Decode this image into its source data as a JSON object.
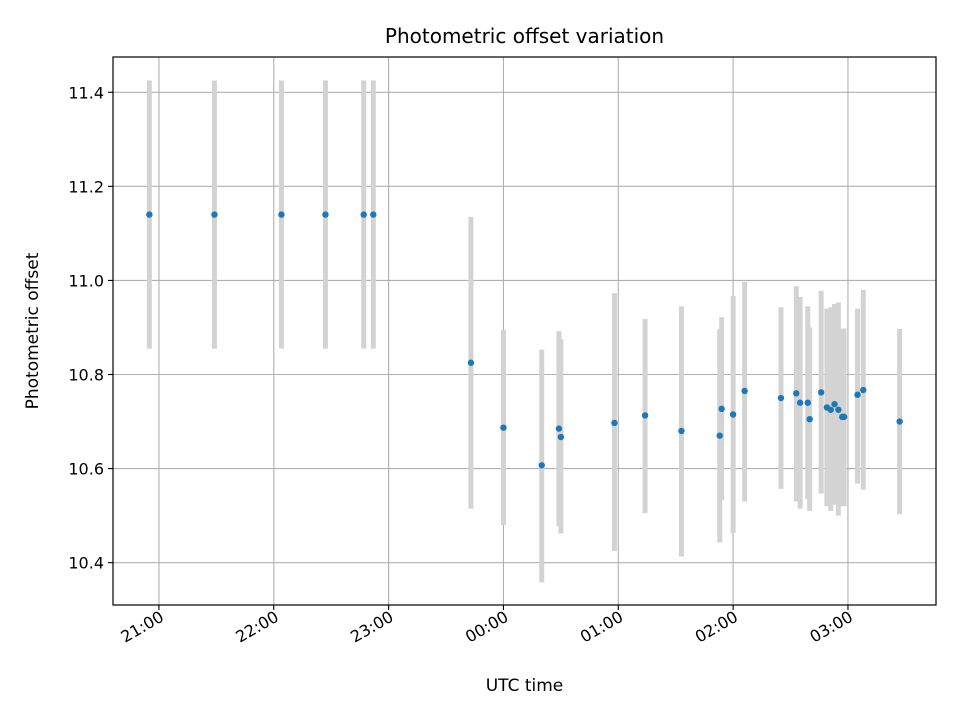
{
  "chart_data": {
    "type": "scatter",
    "title": "Photometric offset variation",
    "xlabel": "UTC time",
    "ylabel": "Photometric offset",
    "x_axis_kind": "time",
    "xlim": [
      "20:36",
      "03:46"
    ],
    "ylim": [
      10.31,
      11.475
    ],
    "grid": true,
    "x_ticks": [
      "21:00",
      "22:00",
      "23:00",
      "00:00",
      "01:00",
      "02:00",
      "03:00"
    ],
    "y_ticks": [
      "10.4",
      "10.6",
      "10.8",
      "11.0",
      "11.2",
      "11.4"
    ],
    "series": [
      {
        "marker_color": "#1f77b4",
        "errorbar_color": "#d3d3d3",
        "points": [
          {
            "time": "20:55",
            "y": 11.14,
            "low": 10.855,
            "high": 11.425
          },
          {
            "time": "21:29",
            "y": 11.14,
            "low": 10.855,
            "high": 11.425
          },
          {
            "time": "22:04",
            "y": 11.14,
            "low": 10.855,
            "high": 11.425
          },
          {
            "time": "22:27",
            "y": 11.14,
            "low": 10.855,
            "high": 11.425
          },
          {
            "time": "22:47",
            "y": 11.14,
            "low": 10.855,
            "high": 11.425
          },
          {
            "time": "22:52",
            "y": 11.14,
            "low": 10.855,
            "high": 11.425
          },
          {
            "time": "23:43",
            "y": 10.825,
            "low": 10.515,
            "high": 11.135
          },
          {
            "time": "00:00",
            "y": 10.687,
            "low": 10.48,
            "high": 10.895
          },
          {
            "time": "00:20",
            "y": 10.607,
            "low": 10.358,
            "high": 10.853
          },
          {
            "time": "00:29",
            "y": 10.685,
            "low": 10.478,
            "high": 10.892
          },
          {
            "time": "00:30",
            "y": 10.667,
            "low": 10.462,
            "high": 10.875
          },
          {
            "time": "00:58",
            "y": 10.697,
            "low": 10.425,
            "high": 10.973
          },
          {
            "time": "01:14",
            "y": 10.713,
            "low": 10.505,
            "high": 10.918
          },
          {
            "time": "01:33",
            "y": 10.68,
            "low": 10.413,
            "high": 10.945
          },
          {
            "time": "01:53",
            "y": 10.67,
            "low": 10.443,
            "high": 10.897
          },
          {
            "time": "01:54",
            "y": 10.727,
            "low": 10.533,
            "high": 10.922
          },
          {
            "time": "02:00",
            "y": 10.715,
            "low": 10.463,
            "high": 10.967
          },
          {
            "time": "02:06",
            "y": 10.765,
            "low": 10.53,
            "high": 10.997
          },
          {
            "time": "02:25",
            "y": 10.75,
            "low": 10.557,
            "high": 10.943
          },
          {
            "time": "02:33",
            "y": 10.76,
            "low": 10.53,
            "high": 10.988
          },
          {
            "time": "02:35",
            "y": 10.74,
            "low": 10.515,
            "high": 10.965
          },
          {
            "time": "02:39",
            "y": 10.74,
            "low": 10.535,
            "high": 10.945
          },
          {
            "time": "02:40",
            "y": 10.705,
            "low": 10.51,
            "high": 10.9
          },
          {
            "time": "02:46",
            "y": 10.762,
            "low": 10.547,
            "high": 10.978
          },
          {
            "time": "02:49",
            "y": 10.73,
            "low": 10.52,
            "high": 10.94
          },
          {
            "time": "02:51",
            "y": 10.725,
            "low": 10.51,
            "high": 10.943
          },
          {
            "time": "02:53",
            "y": 10.737,
            "low": 10.523,
            "high": 10.95
          },
          {
            "time": "02:55",
            "y": 10.725,
            "low": 10.5,
            "high": 10.953
          },
          {
            "time": "02:57",
            "y": 10.71,
            "low": 10.52,
            "high": 10.897
          },
          {
            "time": "02:58",
            "y": 10.71,
            "low": 10.52,
            "high": 10.898
          },
          {
            "time": "03:05",
            "y": 10.757,
            "low": 10.568,
            "high": 10.94
          },
          {
            "time": "03:08",
            "y": 10.767,
            "low": 10.555,
            "high": 10.98
          },
          {
            "time": "03:27",
            "y": 10.7,
            "low": 10.503,
            "high": 10.897
          }
        ]
      }
    ]
  }
}
